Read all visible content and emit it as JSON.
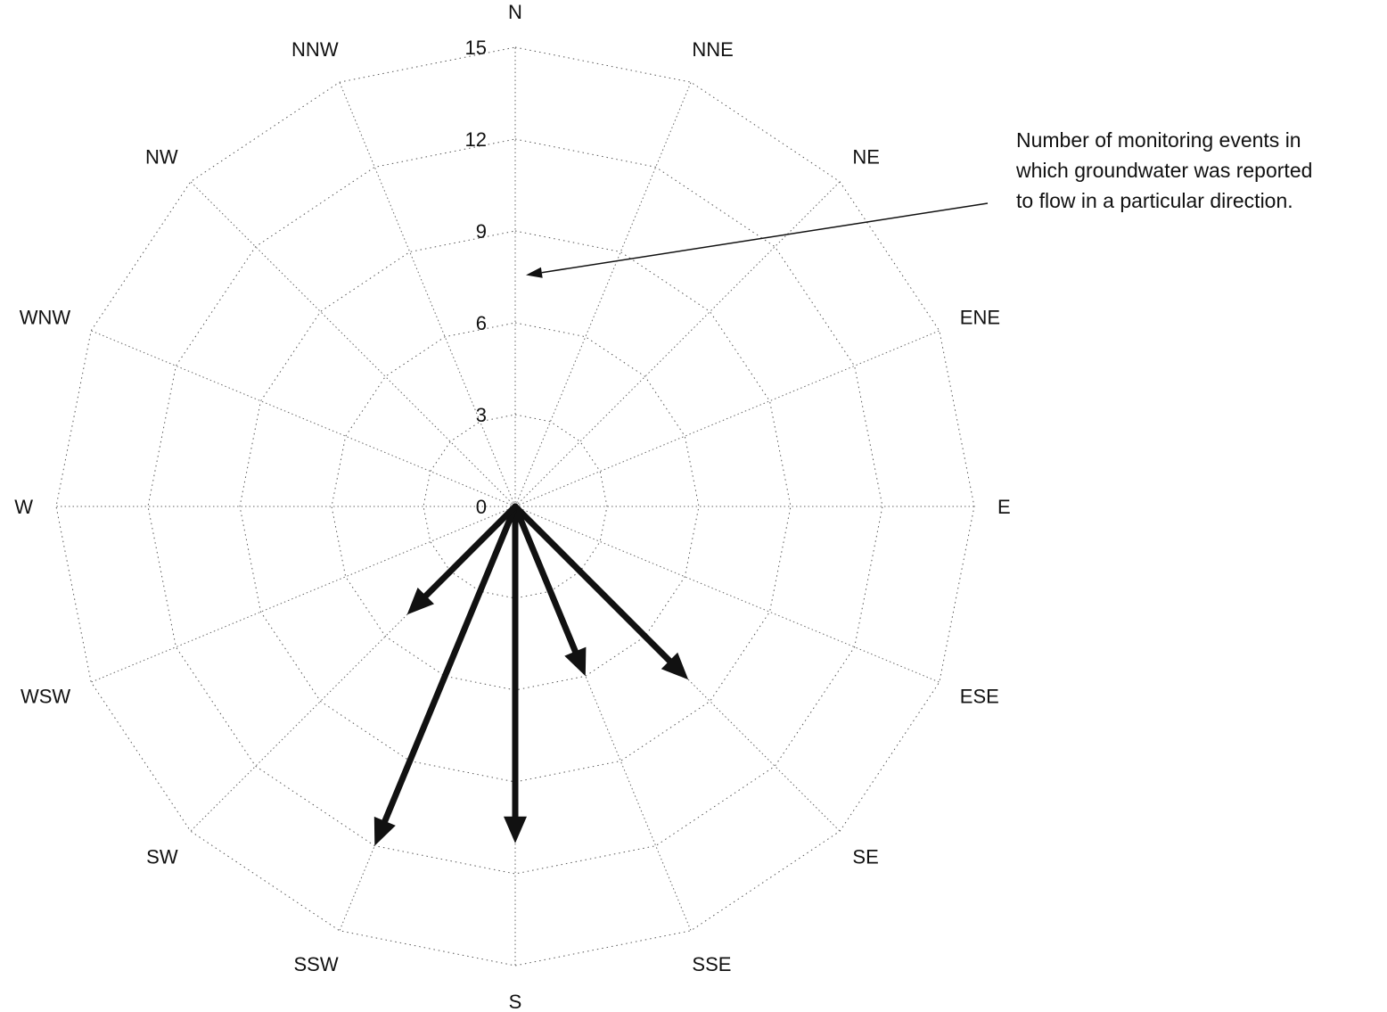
{
  "chart_data": {
    "type": "radar",
    "directions": [
      "N",
      "NNE",
      "NE",
      "ENE",
      "E",
      "ESE",
      "SE",
      "SSE",
      "S",
      "SSW",
      "SW",
      "WSW",
      "W",
      "WNW",
      "NW",
      "NNW"
    ],
    "values": [
      0,
      0,
      0,
      0,
      0,
      0,
      8,
      6,
      11,
      12,
      5,
      0,
      0,
      0,
      0,
      0
    ],
    "r_ticks": [
      0,
      3,
      6,
      9,
      12,
      15
    ],
    "rlim": [
      0,
      15
    ],
    "grid": true,
    "annotation": {
      "lines": [
        "Number of monitoring events in",
        "which groundwater was reported",
        "to flow in a particular direction."
      ],
      "points_to_value": 7.5
    },
    "colors": {
      "arrows": "#111111",
      "grid": "#666666"
    }
  }
}
